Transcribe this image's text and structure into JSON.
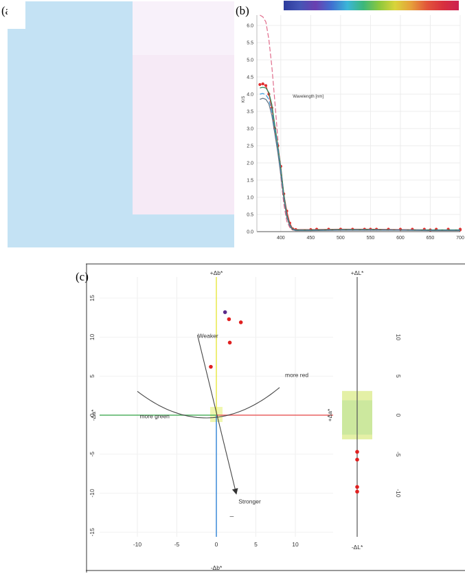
{
  "panel_labels": {
    "a": "(a)",
    "b": "(b)",
    "c": "(c)"
  },
  "swatches": {
    "left_color": "#c4e2f4",
    "right_top_color": "#f8f1fa",
    "right_mid_color": "#f6eaf6",
    "right_bottom_color": "#c4e2f4"
  },
  "chart_data": [
    {
      "type": "line",
      "panel": "b",
      "xlabel": "Wavelength [nm]",
      "ylabel": "K/S",
      "xlim": [
        360,
        700
      ],
      "ylim": [
        0,
        6.3
      ],
      "xticks": [
        400,
        450,
        500,
        550,
        600,
        650,
        700
      ],
      "yticks": [
        0.0,
        0.5,
        1.0,
        1.5,
        2.0,
        2.5,
        3.0,
        3.5,
        4.0,
        4.5,
        5.0,
        5.5,
        6.0
      ],
      "grid": true,
      "spectrum_bar": [
        "#2d3b9c",
        "#4455b5",
        "#6a3fb0",
        "#3f6fd0",
        "#3bb6d8",
        "#3cb77a",
        "#8cc83c",
        "#d9d43a",
        "#e6a03a",
        "#e2553a",
        "#d8303e",
        "#cc2050"
      ],
      "series": [
        {
          "color": "#e06a8a",
          "dashed": true,
          "x": [
            365,
            370,
            375,
            380,
            385,
            390,
            395,
            400,
            405,
            410,
            415,
            420,
            425,
            450,
            500,
            550,
            600,
            650,
            700
          ],
          "y": [
            6.3,
            6.25,
            6.1,
            5.6,
            4.8,
            3.8,
            2.7,
            1.6,
            0.8,
            0.3,
            0.12,
            0.06,
            0.05,
            0.05,
            0.05,
            0.05,
            0.05,
            0.04,
            0.04
          ]
        },
        {
          "color": "#e03030",
          "markers": true,
          "x": [
            365,
            370,
            375,
            380,
            385,
            390,
            395,
            400,
            405,
            410,
            415,
            420,
            425,
            450,
            500,
            550,
            600,
            650,
            700
          ],
          "y": [
            4.28,
            4.3,
            4.25,
            4.0,
            3.6,
            3.0,
            2.5,
            1.9,
            1.1,
            0.6,
            0.25,
            0.08,
            0.06,
            0.06,
            0.07,
            0.07,
            0.06,
            0.05,
            0.05
          ]
        },
        {
          "color": "#2a8a5a",
          "x": [
            365,
            370,
            375,
            380,
            385,
            390,
            395,
            400,
            405,
            410,
            415,
            420,
            425,
            450,
            500,
            550,
            600,
            650,
            700
          ],
          "y": [
            4.18,
            4.2,
            4.18,
            4.05,
            3.7,
            3.1,
            2.5,
            1.85,
            1.1,
            0.5,
            0.2,
            0.07,
            0.05,
            0.05,
            0.06,
            0.06,
            0.05,
            0.05,
            0.05
          ]
        },
        {
          "color": "#3a9ad8",
          "dashed": true,
          "x": [
            365,
            370,
            375,
            380,
            385,
            390,
            395,
            400,
            405,
            410,
            415,
            420,
            425,
            450,
            500,
            550,
            600,
            650,
            700
          ],
          "y": [
            4.0,
            4.02,
            3.98,
            3.85,
            3.5,
            2.95,
            2.4,
            1.75,
            1.0,
            0.45,
            0.18,
            0.06,
            0.04,
            0.04,
            0.05,
            0.05,
            0.05,
            0.04,
            0.04
          ]
        },
        {
          "color": "#607080",
          "x": [
            365,
            370,
            375,
            380,
            385,
            390,
            395,
            400,
            405,
            410,
            415,
            420,
            425,
            450,
            500,
            550,
            600,
            650,
            700
          ],
          "y": [
            3.85,
            3.88,
            3.85,
            3.72,
            3.38,
            2.85,
            2.3,
            1.65,
            0.95,
            0.42,
            0.16,
            0.05,
            0.03,
            0.03,
            0.04,
            0.04,
            0.04,
            0.03,
            0.03
          ]
        }
      ]
    },
    {
      "type": "scatter",
      "panel": "c-main",
      "xlim": [
        -16,
        16
      ],
      "ylim": [
        -18,
        18
      ],
      "xticks": [
        -10,
        -5,
        0,
        5,
        10
      ],
      "yticks": [
        -15,
        -10,
        -5,
        0,
        5,
        10,
        15
      ],
      "axis_labels": {
        "top": "+Δb*",
        "bottom": "-Δb*",
        "left": "-Δa*"
      },
      "annotations": {
        "weaker": "Weaker",
        "stronger": "Stronger",
        "more_red": "more red",
        "more_green": "more green"
      },
      "colors": {
        "pos_b": "#e8e84a",
        "neg_b": "#3a8ad8",
        "pos_a": "#e86060",
        "neg_a": "#50b060",
        "point": "#e02020",
        "point_ref": "#5a2a8a"
      },
      "points": [
        {
          "a": 1.1,
          "b": 13.2,
          "ref": true
        },
        {
          "a": 1.6,
          "b": 12.3
        },
        {
          "a": 3.1,
          "b": 11.9
        },
        {
          "a": 1.7,
          "b": 9.3
        },
        {
          "a": -0.7,
          "b": 6.2
        }
      ]
    },
    {
      "type": "scatter",
      "panel": "c-lightness",
      "ylim": [
        -12.5,
        14
      ],
      "yticks": [
        -10,
        -5,
        0,
        5,
        10
      ],
      "axis_labels": {
        "top": "+ΔL*",
        "bottom": "-ΔL*",
        "left": "+Δa*"
      },
      "colors": {
        "point": "#e02020",
        "band": "#e4f0a6",
        "band_inner": "#cce89e"
      },
      "points": [
        -4.7,
        -5.7,
        -9.2,
        -9.8
      ]
    }
  ]
}
